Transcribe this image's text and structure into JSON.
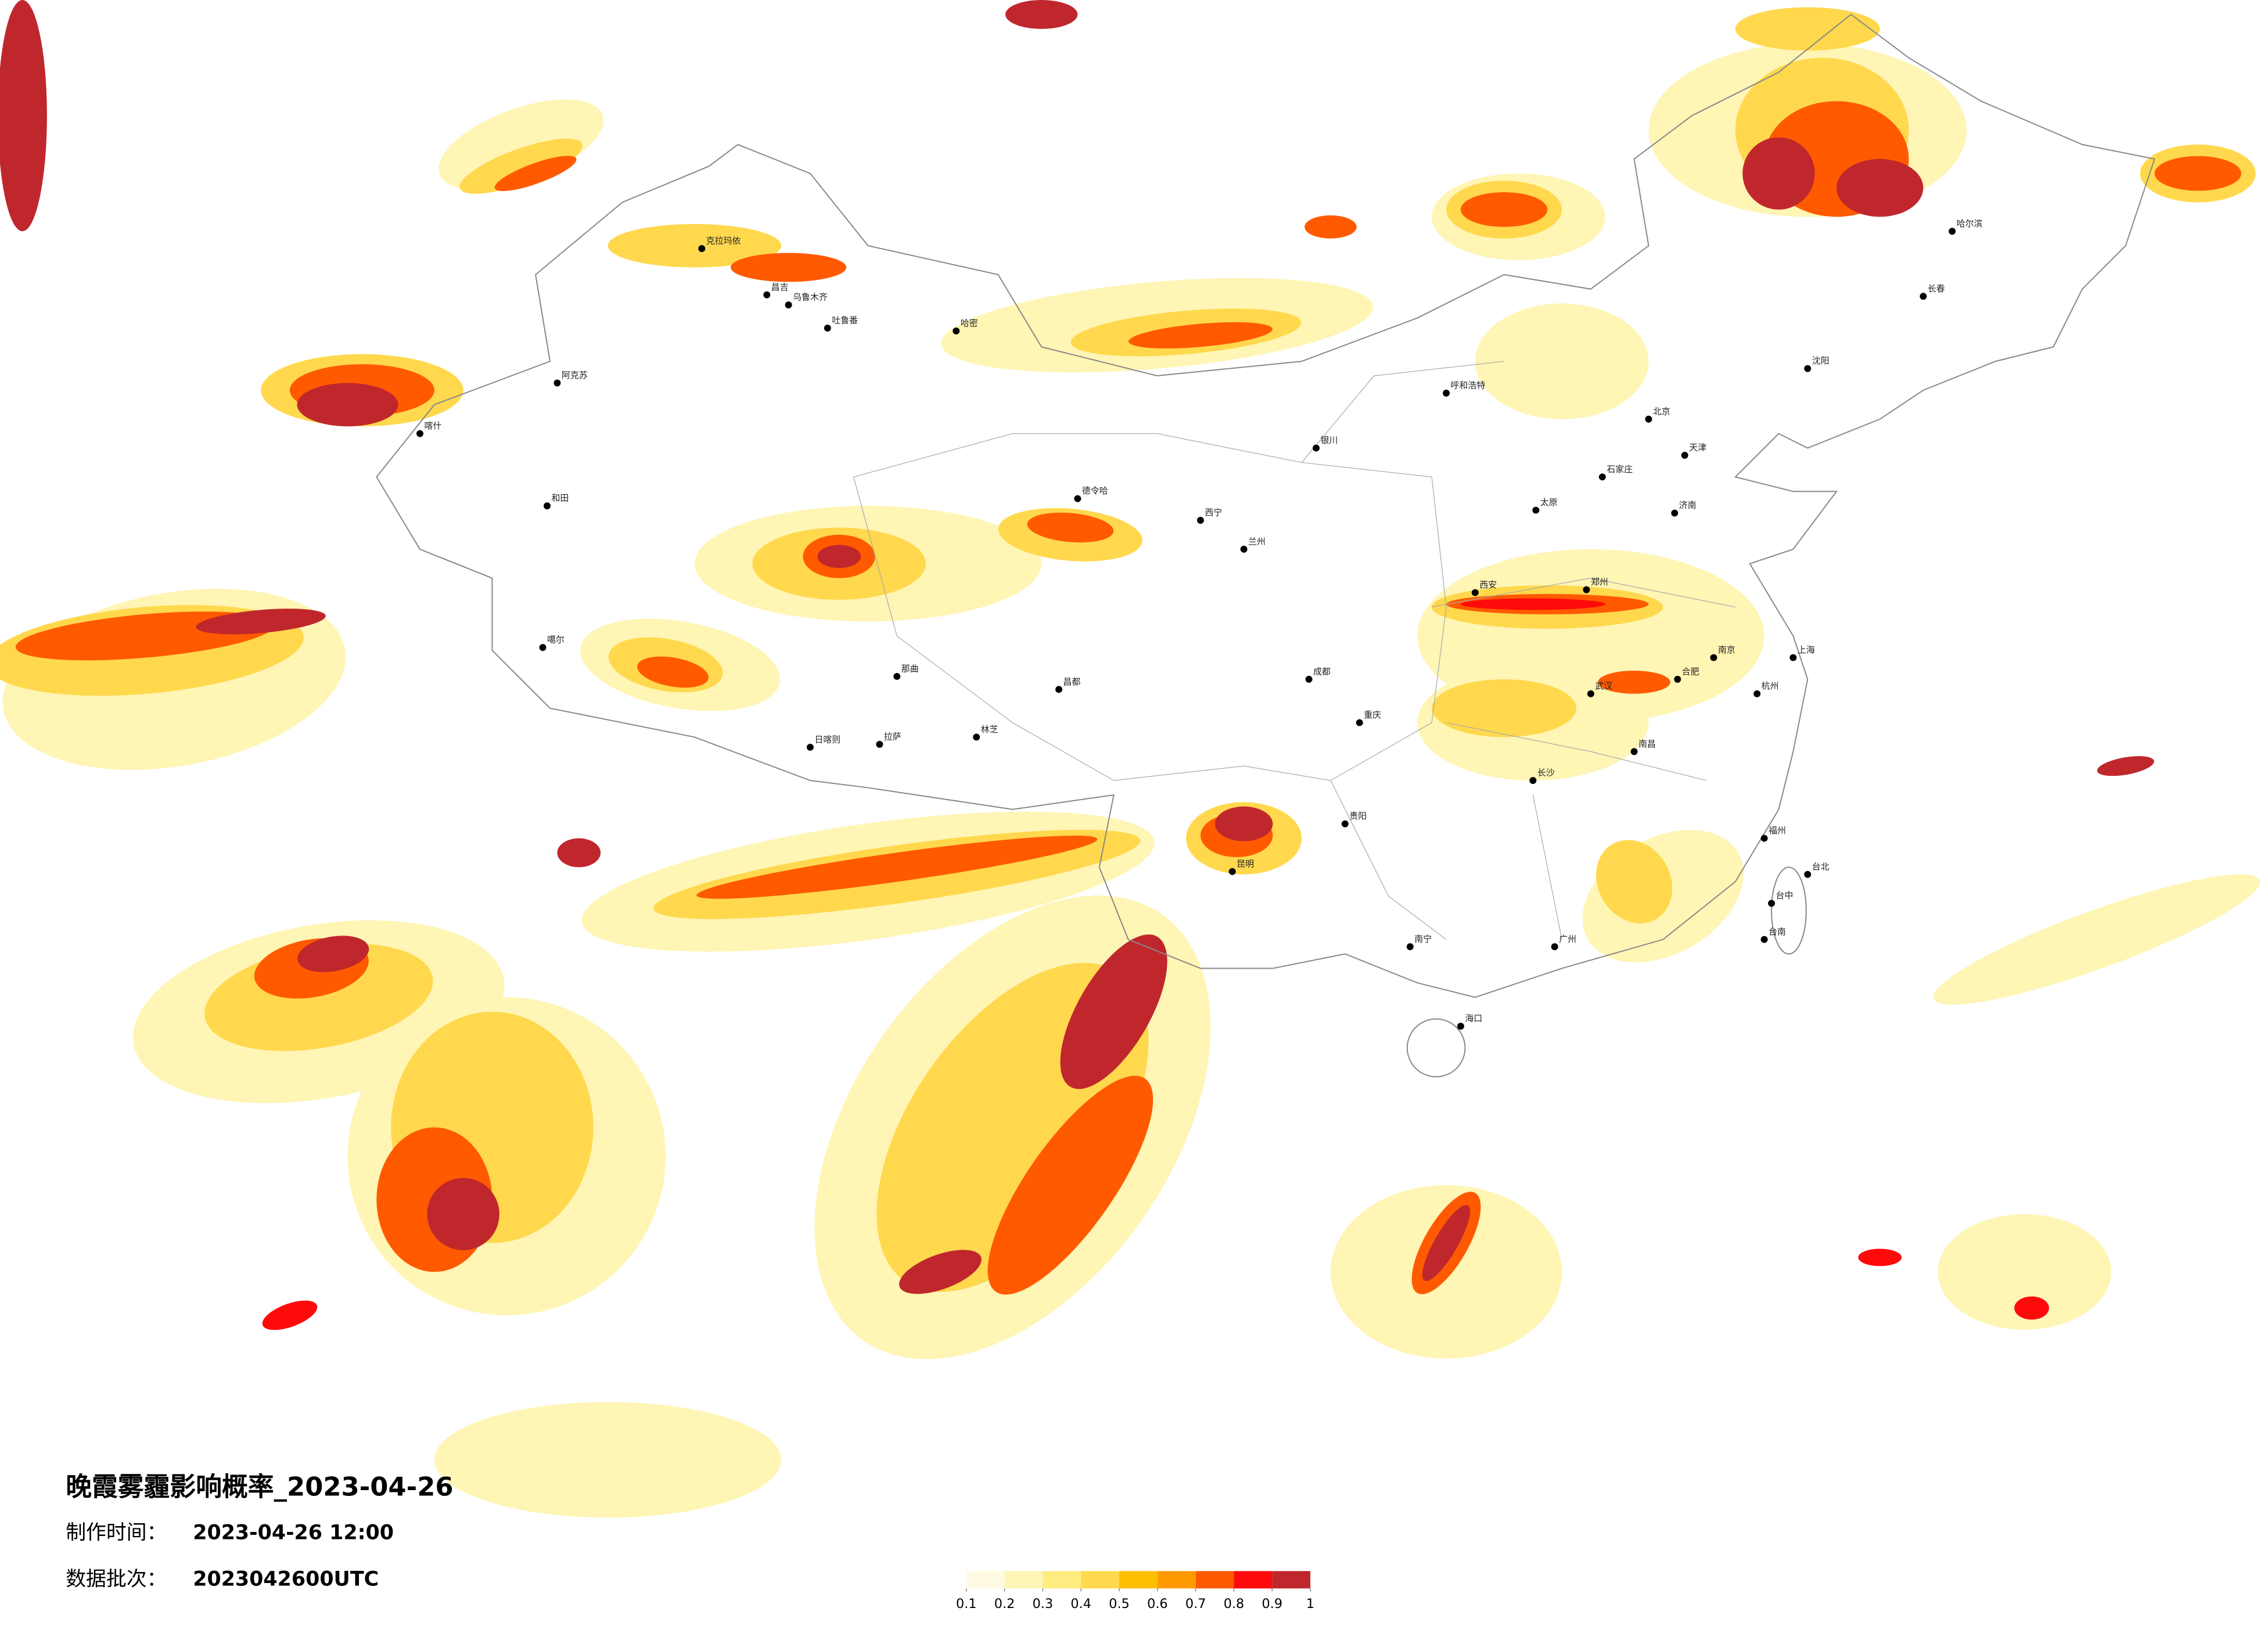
{
  "title": "晚霞雾霾影响概率_2023-04-26",
  "issue_time": {
    "label": "制作时间：",
    "value": "2023-04-26 12:00"
  },
  "batch": {
    "label": "数据批次：",
    "value": "2023042600UTC"
  },
  "colorbar": {
    "colors": [
      "#fffbe3",
      "#fff5b5",
      "#ffec80",
      "#ffd84d",
      "#ffbf00",
      "#ff9a00",
      "#ff5a00",
      "#ff0a0a",
      "#c0272d"
    ],
    "ticks": [
      0.1,
      0.2,
      0.3,
      0.4,
      0.5,
      0.6,
      0.7,
      0.8,
      0.9,
      1
    ]
  },
  "cities": [
    "克拉玛依",
    "昌吉",
    "乌鲁木齐",
    "吐鲁番",
    "哈密",
    "阿克苏",
    "喀什",
    "和田",
    "德令哈",
    "拉萨",
    "日喀则",
    "林芝",
    "那曲",
    "昌都",
    "噶尔",
    "西宁",
    "兰州",
    "银川",
    "呼和浩特",
    "北京",
    "天津",
    "石家庄",
    "太原",
    "济南",
    "郑州",
    "西安",
    "成都",
    "重庆",
    "贵阳",
    "昆明",
    "南宁",
    "广州",
    "海口",
    "长沙",
    "武汉",
    "南昌",
    "福州",
    "杭州",
    "上海",
    "南京",
    "合肥",
    "沈阳",
    "长春",
    "哈尔滨",
    "台北",
    "台中",
    "台南"
  ]
}
